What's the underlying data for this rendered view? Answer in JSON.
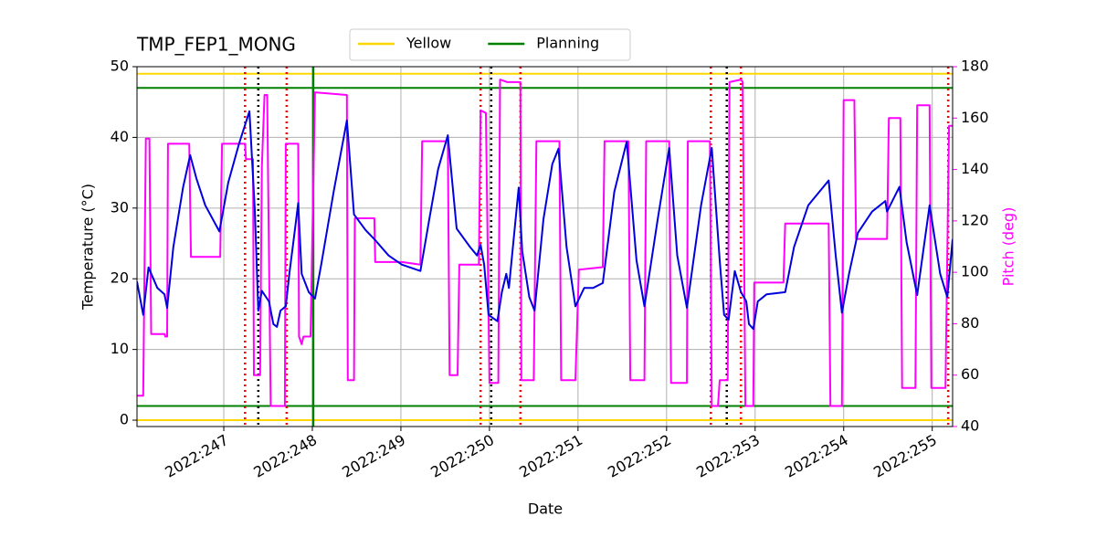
{
  "chart_data": {
    "type": "line",
    "title": "TMP_FEP1_MONG",
    "xlabel": "Date",
    "ylabel": "Temperature (°C)",
    "y2label": "Pitch (deg)",
    "y2color": "#ff00ff",
    "grid": true,
    "xlim": [
      246.02,
      255.23
    ],
    "xticks": [
      {
        "value": 247,
        "label": "2022:247"
      },
      {
        "value": 248,
        "label": "2022:248"
      },
      {
        "value": 249,
        "label": "2022:249"
      },
      {
        "value": 250,
        "label": "2022:250"
      },
      {
        "value": 251,
        "label": "2022:251"
      },
      {
        "value": 252,
        "label": "2022:252"
      },
      {
        "value": 253,
        "label": "2022:253"
      },
      {
        "value": 254,
        "label": "2022:254"
      },
      {
        "value": 255,
        "label": "2022:255"
      }
    ],
    "ylim": [
      -0.9,
      50
    ],
    "yticks": [
      0,
      10,
      20,
      30,
      40,
      50
    ],
    "y2lim": [
      40,
      180
    ],
    "y2ticks": [
      40,
      60,
      80,
      100,
      120,
      140,
      160,
      180
    ],
    "limits": [
      {
        "name": "Yellow",
        "color": "#ffd700",
        "values": [
          0,
          49
        ]
      },
      {
        "name": "Planning",
        "color": "#008000",
        "values": [
          2,
          47
        ]
      }
    ],
    "vlines": [
      {
        "color": "#ff0000",
        "style": "dotted",
        "x": [
          247.24,
          247.71,
          249.9,
          250.35,
          252.5,
          252.84,
          255.18
        ]
      },
      {
        "color": "#000000",
        "style": "dotted",
        "x": [
          247.39,
          250.02,
          252.68
        ]
      },
      {
        "color": "#008000",
        "style": "solid",
        "x": [
          248.01
        ]
      }
    ],
    "series": [
      {
        "color": "#0000e0",
        "x": [
          246.02,
          246.09,
          246.15,
          246.25,
          246.33,
          246.36,
          246.43,
          246.54,
          246.62,
          246.69,
          246.79,
          246.95,
          247.05,
          247.17,
          247.29,
          247.35,
          247.39,
          247.43,
          247.51,
          247.56,
          247.6,
          247.64,
          247.7,
          247.74,
          247.79,
          247.84,
          247.88,
          247.96,
          248.03,
          248.1,
          248.24,
          248.39,
          248.47,
          248.6,
          248.7,
          248.86,
          249.01,
          249.22,
          249.32,
          249.42,
          249.53,
          249.63,
          249.78,
          249.86,
          249.9,
          249.94,
          249.99,
          250.09,
          250.14,
          250.19,
          250.22,
          250.27,
          250.33,
          250.37,
          250.45,
          250.51,
          250.61,
          250.71,
          250.78,
          250.87,
          250.97,
          251.07,
          251.17,
          251.28,
          251.41,
          251.55,
          251.66,
          251.75,
          251.9,
          252.03,
          252.12,
          252.23,
          252.39,
          252.51,
          252.6,
          252.65,
          252.7,
          252.77,
          252.84,
          252.9,
          252.93,
          252.98,
          253.03,
          253.13,
          253.34,
          253.44,
          253.6,
          253.83,
          253.91,
          253.98,
          254.06,
          254.16,
          254.32,
          254.47,
          254.49,
          254.63,
          254.71,
          254.83,
          254.97,
          255.09,
          255.17,
          255.23
        ],
        "values": [
          19.6,
          14.9,
          21.6,
          18.7,
          17.8,
          15.9,
          24.5,
          32.9,
          37.5,
          34.2,
          30.4,
          26.7,
          33.6,
          39.0,
          43.7,
          29.7,
          15.5,
          18.3,
          16.8,
          13.6,
          13.2,
          15.5,
          16.1,
          20.7,
          25.6,
          30.7,
          20.7,
          18.1,
          17.2,
          22.0,
          32.3,
          42.4,
          29.1,
          26.9,
          25.6,
          23.3,
          22.0,
          21.1,
          28.4,
          35.5,
          40.3,
          27.1,
          24.5,
          23.3,
          24.8,
          22.0,
          14.9,
          14.0,
          18.1,
          20.7,
          18.7,
          25.2,
          32.9,
          23.9,
          17.4,
          15.5,
          28.4,
          36.2,
          38.4,
          24.5,
          16.1,
          18.7,
          18.7,
          19.4,
          32.3,
          39.4,
          22.6,
          16.1,
          28.4,
          38.5,
          23.3,
          15.9,
          30.4,
          38.5,
          22.6,
          14.9,
          14.2,
          21.1,
          18.1,
          16.8,
          13.6,
          12.9,
          16.8,
          17.8,
          18.1,
          24.5,
          30.4,
          33.9,
          23.3,
          15.2,
          20.7,
          26.5,
          29.5,
          31.0,
          29.5,
          33.0,
          25.2,
          17.7,
          30.4,
          20.7,
          17.4,
          25.6
        ]
      },
      {
        "color": "#ff00ff",
        "axis": "y2",
        "x": [
          246.02,
          246.09,
          246.12,
          246.16,
          246.18,
          246.33,
          246.34,
          246.36,
          246.37,
          246.61,
          246.63,
          246.96,
          246.98,
          247.24,
          247.25,
          247.33,
          247.34,
          247.41,
          247.43,
          247.46,
          247.49,
          247.53,
          247.69,
          247.7,
          247.84,
          247.85,
          247.88,
          247.9,
          247.98,
          248.03,
          248.39,
          248.4,
          248.47,
          248.48,
          248.7,
          248.71,
          249.01,
          249.22,
          249.24,
          249.53,
          249.55,
          249.64,
          249.66,
          249.88,
          249.9,
          249.96,
          250.0,
          250.1,
          250.12,
          250.2,
          250.35,
          250.36,
          250.5,
          250.53,
          250.79,
          250.81,
          250.97,
          251.01,
          251.28,
          251.3,
          251.57,
          251.59,
          251.75,
          251.77,
          252.03,
          252.05,
          252.23,
          252.24,
          252.49,
          252.51,
          252.58,
          252.6,
          252.69,
          252.71,
          252.84,
          252.86,
          252.89,
          252.98,
          252.99,
          253.32,
          253.34,
          253.83,
          253.85,
          253.98,
          254.0,
          254.12,
          254.14,
          254.49,
          254.51,
          254.64,
          254.66,
          254.81,
          254.83,
          254.97,
          254.99,
          255.15,
          255.19,
          255.23
        ],
        "values": [
          52,
          52,
          152,
          152,
          76,
          76,
          75,
          75,
          150,
          150,
          106,
          106,
          150,
          150,
          144,
          144,
          60,
          60,
          141,
          169,
          169,
          48,
          48,
          150,
          150,
          75,
          72,
          75,
          75,
          170,
          169,
          58,
          58,
          121,
          121,
          104,
          104,
          103,
          151,
          151,
          60,
          60,
          103,
          103,
          163,
          162,
          57,
          57,
          175,
          174,
          174,
          58,
          58,
          151,
          151,
          58,
          58,
          101,
          102,
          151,
          151,
          58,
          58,
          151,
          151,
          57,
          57,
          151,
          151,
          48,
          48,
          58,
          58,
          174,
          175,
          174,
          48,
          48,
          96,
          96,
          119,
          119,
          48,
          48,
          167,
          167,
          113,
          113,
          160,
          160,
          55,
          55,
          165,
          165,
          55,
          55,
          157,
          157
        ]
      }
    ]
  }
}
